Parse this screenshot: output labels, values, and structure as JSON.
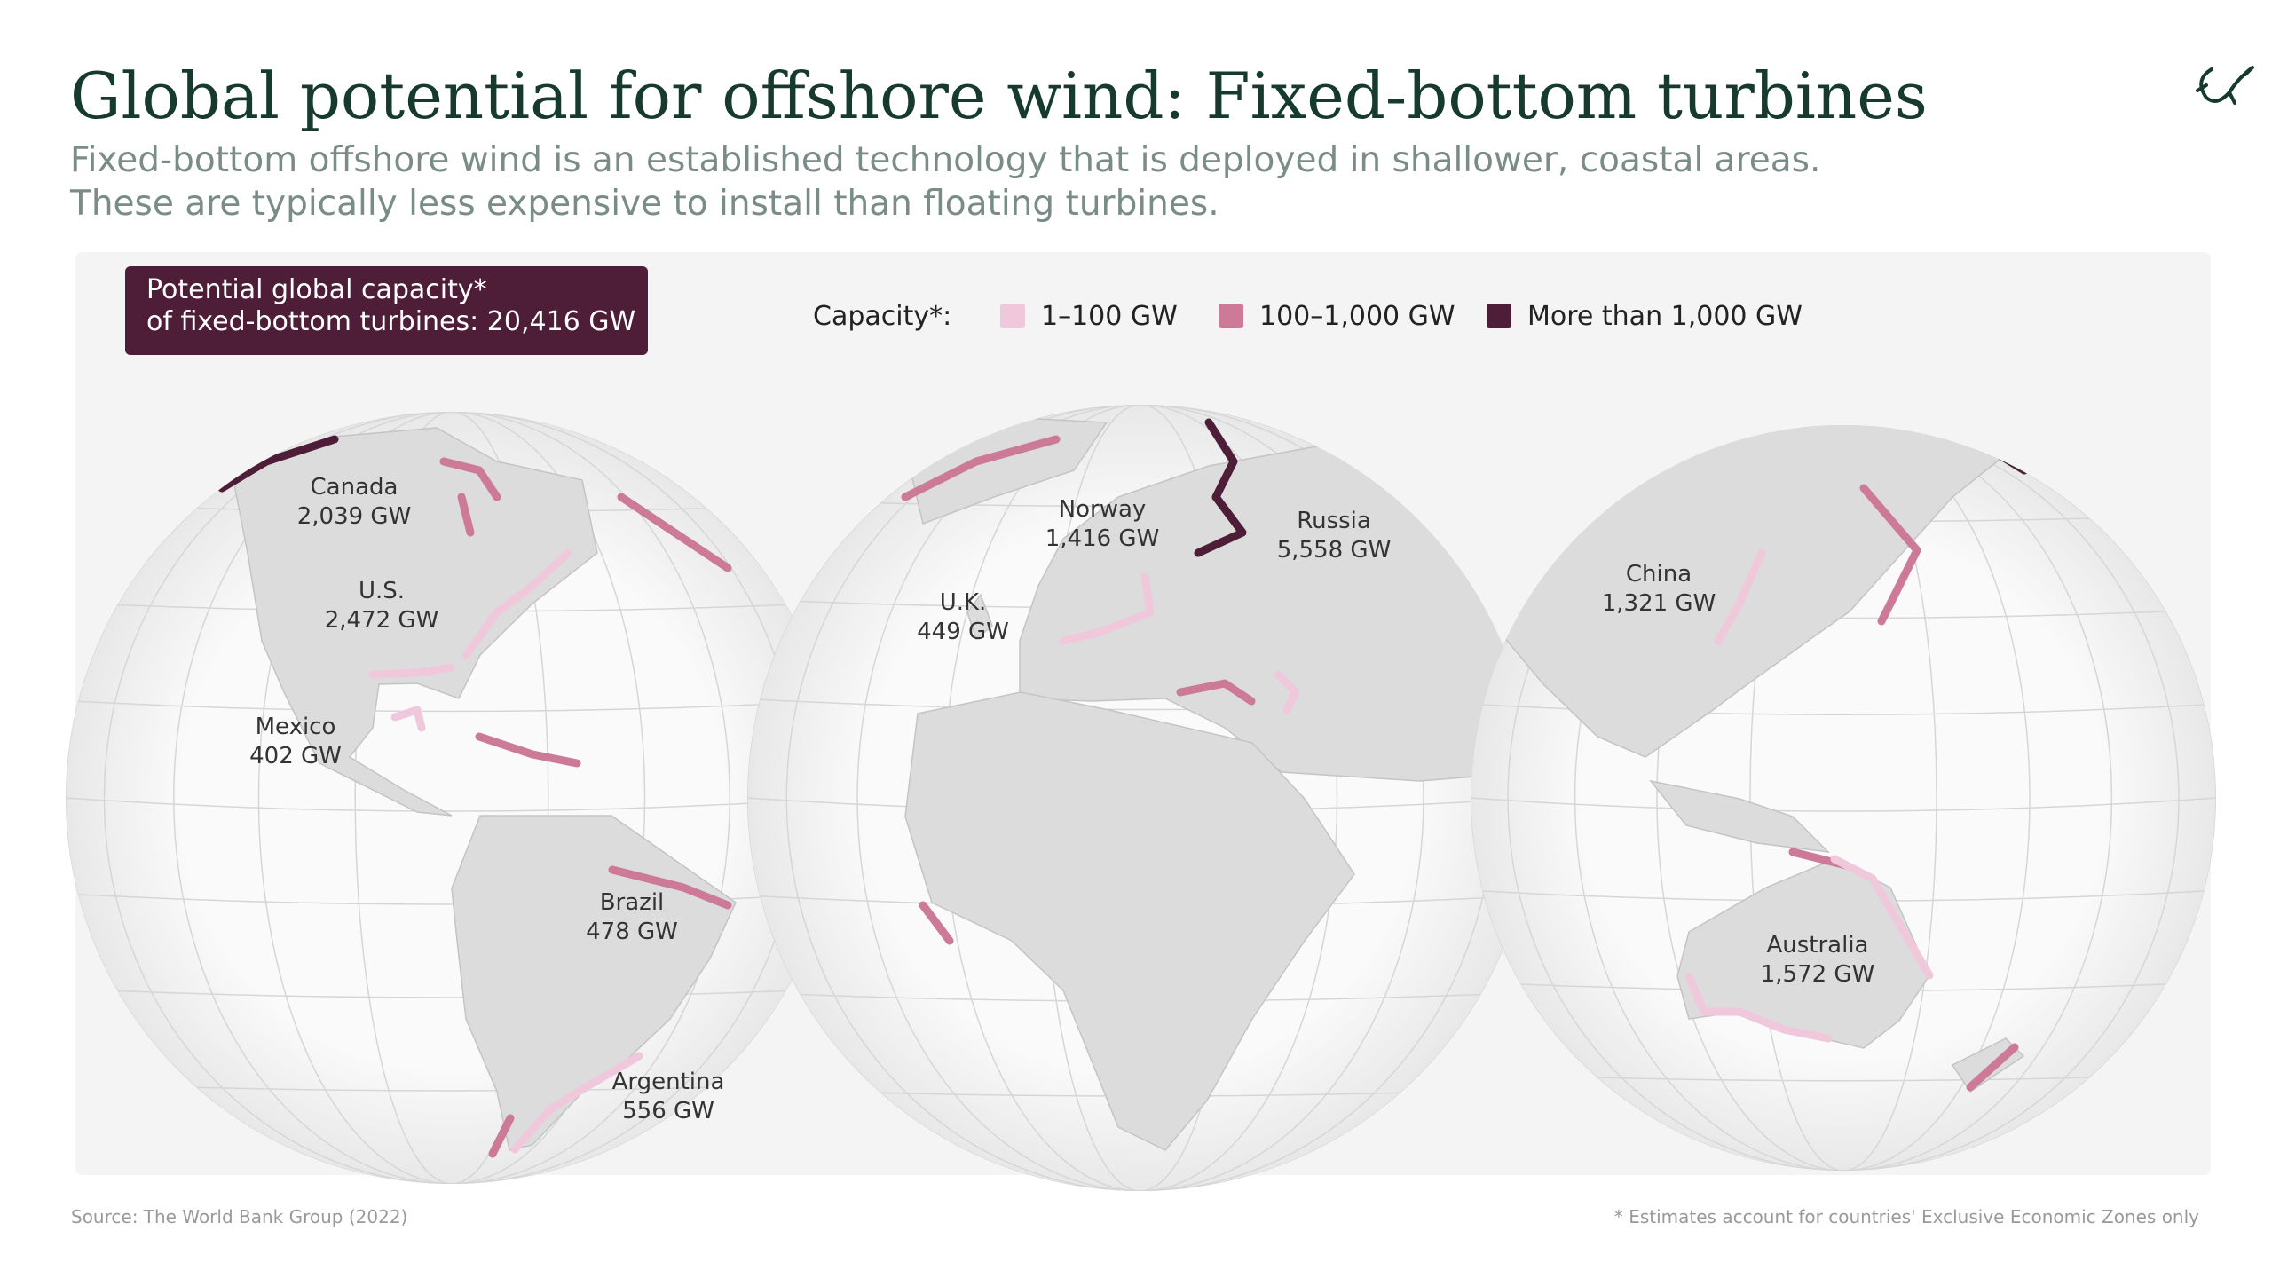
{
  "header": {
    "title": "Global potential for offshore wind: Fixed-bottom turbines",
    "subtitle": [
      "Fixed-bottom offshore wind is an established technology that is deployed in shallower, coastal areas.",
      "These are typically less expensive to install than floating turbines."
    ]
  },
  "callout": [
    "Potential global capacity*",
    "of fixed-bottom turbines: 20,416 GW"
  ],
  "legend": {
    "title": "Capacity*:",
    "items": [
      {
        "label": "1–100 GW",
        "color": "#f0c8dc"
      },
      {
        "label": "100–1,000 GW",
        "color": "#cc7a98"
      },
      {
        "label": "More than 1,000 GW",
        "color": "#4e1d38"
      }
    ]
  },
  "labels": [
    {
      "name": "Canada",
      "capacity": "2,039 GW"
    },
    {
      "name": "U.S.",
      "capacity": "2,472 GW"
    },
    {
      "name": "Mexico",
      "capacity": "402 GW"
    },
    {
      "name": "Brazil",
      "capacity": "478 GW"
    },
    {
      "name": "Argentina",
      "capacity": "556 GW"
    },
    {
      "name": "Norway",
      "capacity": "1,416 GW"
    },
    {
      "name": "U.K.",
      "capacity": "449 GW"
    },
    {
      "name": "Russia",
      "capacity": "5,558 GW"
    },
    {
      "name": "China",
      "capacity": "1,321 GW"
    },
    {
      "name": "Australia",
      "capacity": "1,572 GW"
    }
  ],
  "footer": {
    "source": "Source: The World Bank Group (2022)",
    "note": "* Estimates account for countries' Exclusive Economic Zones only"
  }
}
